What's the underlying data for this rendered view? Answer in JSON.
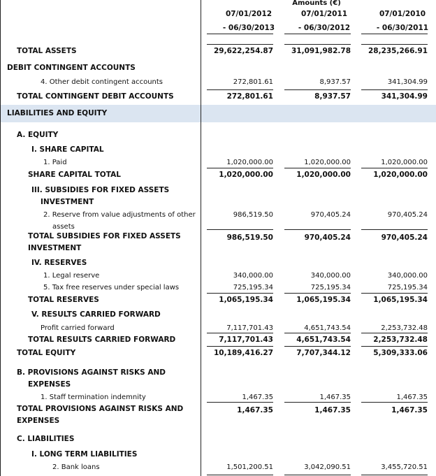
{
  "header": {
    "amounts_label": "Amounts (€)",
    "periods": [
      [
        "07/01/2012",
        "- 06/30/2013"
      ],
      [
        "07/01/2011",
        "- 06/30/2012"
      ],
      [
        "07/01/2010",
        "- 06/30/2011"
      ]
    ]
  },
  "rows": [
    {
      "label": [
        "TOTAL ASSETS"
      ],
      "values": [
        "29,622,254.87",
        "31,091,982.78",
        "28,235,266.91"
      ]
    },
    {
      "label": [
        "DEBIT CONTINGENT ACCOUNTS"
      ]
    },
    {
      "label": [
        "4. Other debit contingent accounts"
      ],
      "values": [
        "272,801.61",
        "8,937.57",
        "341,304.99"
      ]
    },
    {
      "label": [
        "TOTAL CONTINGENT DEBIT ACCOUNTS"
      ],
      "values": [
        "272,801.61",
        "8,937.57",
        "341,304.99"
      ]
    },
    {
      "label": [
        "LIABILITIES AND EQUITY"
      ]
    },
    {
      "label": [
        "A. EQUITY"
      ]
    },
    {
      "label": [
        "I. SHARE CAPITAL"
      ]
    },
    {
      "label": [
        "1. Paid"
      ],
      "values": [
        "1,020,000.00",
        "1,020,000.00",
        "1,020,000.00"
      ]
    },
    {
      "label": [
        "SHARE CAPITAL TOTAL"
      ],
      "values": [
        "1,020,000.00",
        "1,020,000.00",
        "1,020,000.00"
      ]
    },
    {
      "label": [
        "III. SUBSIDIES FOR FIXED ASSETS",
        "INVESTMENT"
      ]
    },
    {
      "label": [
        "2. Reserve from value adjustments of other",
        "assets"
      ],
      "values": [
        "986,519.50",
        "970,405.24",
        "970,405.24"
      ]
    },
    {
      "label": [
        "TOTAL SUBSIDIES FOR FIXED ASSETS",
        "INVESTMENT"
      ],
      "values": [
        "986,519.50",
        "970,405.24",
        "970,405.24"
      ]
    },
    {
      "label": [
        "IV. RESERVES"
      ]
    },
    {
      "label": [
        "1. Legal reserve"
      ],
      "values": [
        "340,000.00",
        "340,000.00",
        "340,000.00"
      ]
    },
    {
      "label": [
        "5. Tax free reserves under special laws"
      ],
      "values": [
        "725,195.34",
        "725,195.34",
        "725,195.34"
      ]
    },
    {
      "label": [
        "TOTAL RESERVES"
      ],
      "values": [
        "1,065,195.34",
        "1,065,195.34",
        "1,065,195.34"
      ]
    },
    {
      "label": [
        "V. RESULTS CARRIED FORWARD"
      ]
    },
    {
      "label": [
        "Profit carried forward"
      ],
      "values": [
        "7,117,701.43",
        "4,651,743.54",
        "2,253,732.48"
      ]
    },
    {
      "label": [
        "TOTAL RESULTS CARRIED FORWARD"
      ],
      "values": [
        "7,117,701.43",
        "4,651,743.54",
        "2,253,732.48"
      ]
    },
    {
      "label": [
        "TOTAL EQUITY"
      ],
      "values": [
        "10,189,416.27",
        "7,707,344.12",
        "5,309,333.06"
      ]
    },
    {
      "label": [
        "B. PROVISIONS AGAINST RISKS AND",
        "EXPENSES"
      ]
    },
    {
      "label": [
        "1. Staff termination indemnity"
      ],
      "values": [
        "1,467.35",
        "1,467.35",
        "1,467.35"
      ]
    },
    {
      "label": [
        "TOTAL PROVISIONS AGAINST RISKS AND",
        "EXPENSES"
      ],
      "values": [
        "1,467.35",
        "1,467.35",
        "1,467.35"
      ]
    },
    {
      "label": [
        "C. LIABILITIES"
      ]
    },
    {
      "label": [
        "I. LONG TERM LIABILITIES"
      ]
    },
    {
      "label": [
        "2. Bank loans"
      ],
      "values": [
        "1,501,200.51",
        "3,042,090.51",
        "3,455,720.51"
      ]
    }
  ]
}
